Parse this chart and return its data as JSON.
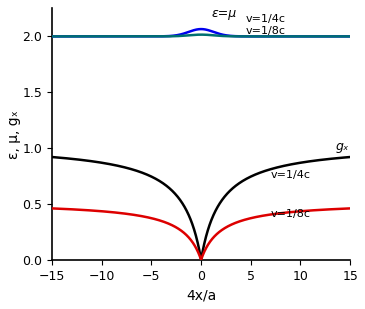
{
  "x_min": -15,
  "x_max": 15,
  "y_min": 0,
  "y_max": 2.25,
  "xlabel": "4x/a",
  "ylabel": "ε, μ, gₓ",
  "label_eps_mu": "ε=μ",
  "label_gx": "gₓ",
  "label_v1": "v=1/4c",
  "label_v2": "v=1/8c",
  "color_blue": "#0000EE",
  "color_teal": "#007070",
  "color_black": "#000000",
  "color_red": "#DD0000",
  "v1": 0.25,
  "v2": 0.125,
  "bubble_sigma": 0.5,
  "bubble_R": 1.5,
  "num_points": 1000,
  "yticks": [
    0.0,
    0.5,
    1.0,
    1.5,
    2.0
  ],
  "xticks": [
    -15,
    -10,
    -5,
    0,
    5,
    10,
    15
  ],
  "background_color": "#ffffff",
  "eps_v1_at_x0": 2.065,
  "eps_v2_at_x0": 2.016,
  "gx_v1_at_x15": 0.92,
  "gx_v2_at_x15": 0.46
}
